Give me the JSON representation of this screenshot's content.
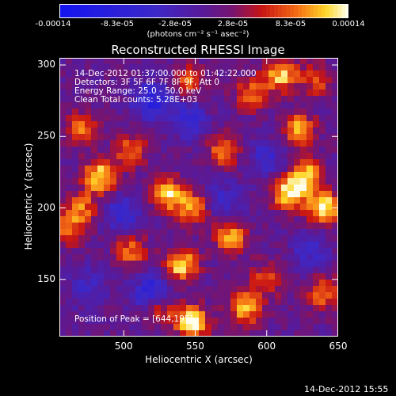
{
  "colorbar": {
    "ticks": [
      "-0.00014",
      "-8.3e-05",
      "-2.8e-05",
      "2.8e-05",
      "8.3e-05",
      "0.00014"
    ],
    "units_label": "(photons cm⁻² s⁻¹ asec⁻²)",
    "range": [
      -0.00014,
      0.00014
    ]
  },
  "plot_title": "Reconstructed RHESSI Image",
  "overlay": {
    "time_range": "14-Dec-2012 01:37:00.000 to 01:42:22.000",
    "detectors": "Detectors: 3F 5F 6F 7F 8F 9F, Att 0",
    "energy": "Energy Range: 25.0 - 50.0 keV",
    "clean": "Clean     Total counts: 5.28E+03",
    "peak": "Position of Peak = [644,195]"
  },
  "footer_timestamp": "14-Dec-2012 15:55",
  "colors": {
    "negative": "#1e1ef0",
    "neutral": "#5a1a96",
    "positive_low": "#d01010",
    "positive_high": "#ffff60"
  },
  "chart_data": {
    "type": "heatmap",
    "title": "Reconstructed RHESSI Image",
    "xlabel": "Heliocentric X (arcsec)",
    "ylabel": "Heliocentric Y (arcsec)",
    "xlim": [
      455,
      650
    ],
    "ylim": [
      110,
      305
    ],
    "xticks": [
      500,
      550,
      600,
      650
    ],
    "yticks": [
      150,
      200,
      250,
      300
    ],
    "colorbar_range": [
      -0.00014,
      0.00014
    ],
    "peak_position": [
      644,
      195
    ],
    "grid": false,
    "hotspots": [
      {
        "x": 610,
        "y": 293,
        "v": 0.8
      },
      {
        "x": 622,
        "y": 255,
        "v": 0.75
      },
      {
        "x": 628,
        "y": 222,
        "v": 0.85
      },
      {
        "x": 640,
        "y": 200,
        "v": 1.0
      },
      {
        "x": 615,
        "y": 210,
        "v": 0.9
      },
      {
        "x": 545,
        "y": 288,
        "v": 0.55
      },
      {
        "x": 590,
        "y": 280,
        "v": 0.6
      },
      {
        "x": 483,
        "y": 222,
        "v": 0.9
      },
      {
        "x": 470,
        "y": 200,
        "v": 0.6
      },
      {
        "x": 530,
        "y": 210,
        "v": 0.85
      },
      {
        "x": 548,
        "y": 200,
        "v": 0.7
      },
      {
        "x": 575,
        "y": 180,
        "v": 0.75
      },
      {
        "x": 505,
        "y": 170,
        "v": 0.6
      },
      {
        "x": 540,
        "y": 160,
        "v": 0.9
      },
      {
        "x": 460,
        "y": 185,
        "v": 0.55
      },
      {
        "x": 585,
        "y": 130,
        "v": 0.8
      },
      {
        "x": 548,
        "y": 120,
        "v": 1.0
      },
      {
        "x": 525,
        "y": 130,
        "v": 0.6
      },
      {
        "x": 600,
        "y": 150,
        "v": 0.5
      },
      {
        "x": 640,
        "y": 140,
        "v": 0.6
      },
      {
        "x": 470,
        "y": 255,
        "v": 0.6
      },
      {
        "x": 505,
        "y": 240,
        "v": 0.55
      },
      {
        "x": 570,
        "y": 240,
        "v": 0.6
      },
      {
        "x": 635,
        "y": 290,
        "v": 0.5
      }
    ],
    "coldspots": [
      {
        "x": 520,
        "y": 275,
        "v": -0.7
      },
      {
        "x": 545,
        "y": 262,
        "v": -0.5
      },
      {
        "x": 500,
        "y": 195,
        "v": -0.5
      },
      {
        "x": 570,
        "y": 205,
        "v": -0.4
      },
      {
        "x": 520,
        "y": 140,
        "v": -0.75
      },
      {
        "x": 600,
        "y": 235,
        "v": -0.4
      },
      {
        "x": 475,
        "y": 145,
        "v": -0.4
      },
      {
        "x": 630,
        "y": 170,
        "v": -0.4
      }
    ]
  }
}
